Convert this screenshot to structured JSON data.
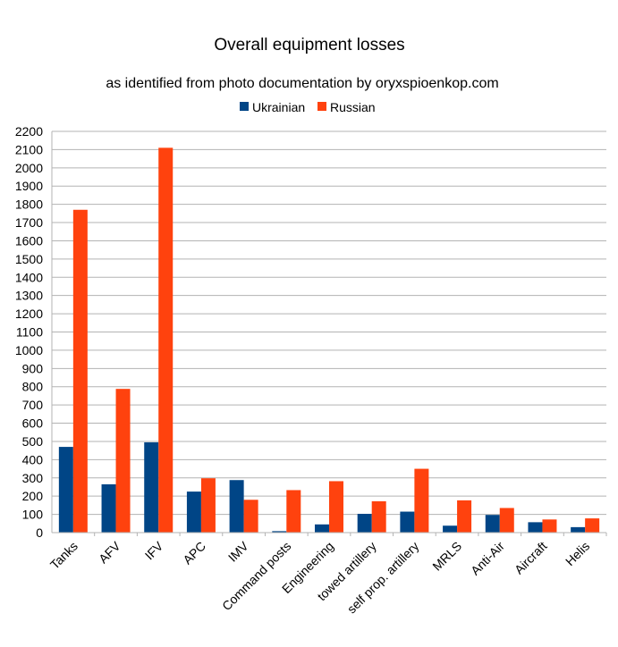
{
  "chart_data": {
    "type": "bar",
    "title": "Overall equipment losses",
    "subtitle": "as identified from photo documentation by oryxspioenkop.com",
    "xlabel": "",
    "ylabel": "",
    "categories": [
      "Tanks",
      "AFV",
      "IFV",
      "APC",
      "IMV",
      "Command posts",
      "Engineering",
      "towed artillery",
      "self prop. artillery",
      "MRLS",
      "Anti-Air",
      "Aircraft",
      "Helis"
    ],
    "series": [
      {
        "name": "Ukrainian",
        "color": "#004586",
        "values": [
          470,
          265,
          495,
          225,
          288,
          8,
          45,
          103,
          115,
          38,
          97,
          57,
          30
        ]
      },
      {
        "name": "Russian",
        "color": "#ff420e",
        "values": [
          1770,
          788,
          2110,
          298,
          180,
          233,
          282,
          172,
          350,
          177,
          135,
          72,
          78
        ]
      }
    ],
    "ylim": [
      0,
      2200
    ],
    "ytick_step": 100,
    "grid": true,
    "legend_position": "top"
  }
}
